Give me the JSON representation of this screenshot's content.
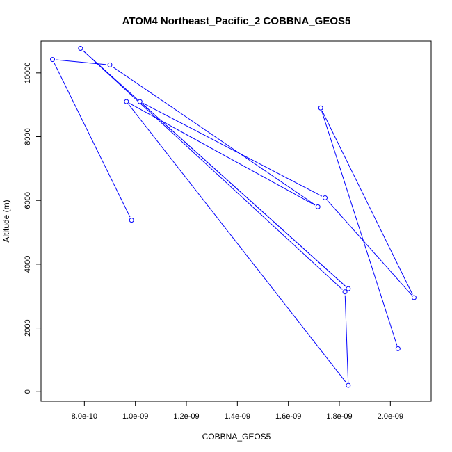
{
  "chart_data": {
    "type": "line",
    "title": "ATOM4 Northeast_Pacific_2 COBBNA_GEOS5",
    "xlabel": "COBBNA_GEOS5",
    "ylabel": "Altitude (m)",
    "xlim": [
      6.3e-10,
      2.16e-09
    ],
    "ylim": [
      -300,
      11000
    ],
    "x_ticks": [
      {
        "value": 8e-10,
        "label": "8.0e-10"
      },
      {
        "value": 1e-09,
        "label": "1.0e-09"
      },
      {
        "value": 1.2e-09,
        "label": "1.2e-09"
      },
      {
        "value": 1.4e-09,
        "label": "1.4e-09"
      },
      {
        "value": 1.6e-09,
        "label": "1.6e-09"
      },
      {
        "value": 1.8e-09,
        "label": "1.8e-09"
      },
      {
        "value": 2e-09,
        "label": "2.0e-09"
      }
    ],
    "y_ticks": [
      {
        "value": 0,
        "label": "0"
      },
      {
        "value": 2000,
        "label": "2000"
      },
      {
        "value": 4000,
        "label": "4000"
      },
      {
        "value": 6000,
        "label": "6000"
      },
      {
        "value": 8000,
        "label": "8000"
      },
      {
        "value": 10000,
        "label": "10000"
      }
    ],
    "series": [
      {
        "color": "#0000ff",
        "marker": "open-circle",
        "points": [
          {
            "x": 9.85e-10,
            "y": 5380
          },
          {
            "x": 6.75e-10,
            "y": 10420
          },
          {
            "x": 9e-10,
            "y": 10250
          },
          {
            "x": 1.716e-09,
            "y": 5800
          },
          {
            "x": 9.65e-10,
            "y": 9100
          },
          {
            "x": 1.835e-09,
            "y": 200
          },
          {
            "x": 1.822e-09,
            "y": 3130
          },
          {
            "x": 7.85e-10,
            "y": 10770
          },
          {
            "x": 1.835e-09,
            "y": 3230
          },
          {
            "x": 1.018e-09,
            "y": 9100
          },
          {
            "x": 1.744e-09,
            "y": 6080
          },
          {
            "x": 2.093e-09,
            "y": 2950
          },
          {
            "x": 1.727e-09,
            "y": 8900
          },
          {
            "x": 2.03e-09,
            "y": 1350
          }
        ]
      }
    ]
  }
}
